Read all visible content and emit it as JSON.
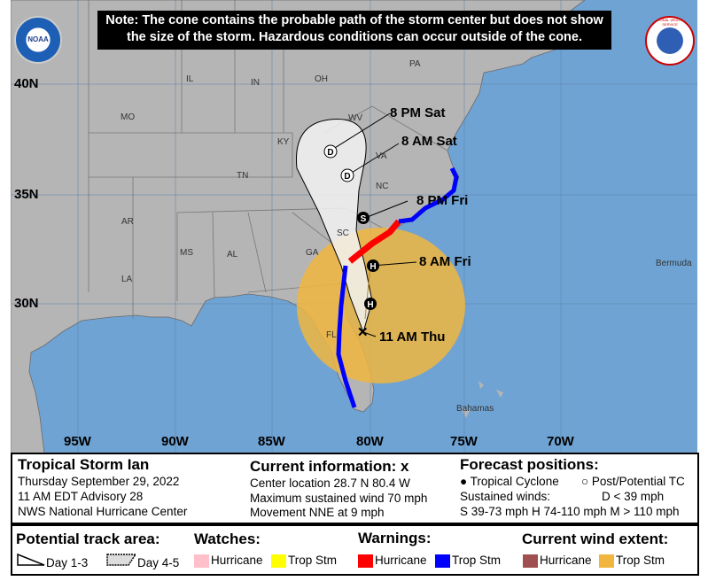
{
  "note": {
    "line1": "Note: The cone contains the probable path of the storm center but does not show",
    "line2": "the size of the storm. Hazardous conditions can occur outside of the cone."
  },
  "logos": {
    "left": "NOAA",
    "right": "NATIONAL WEATHER SERVICE"
  },
  "lat_labels": [
    "40N",
    "35N",
    "30N"
  ],
  "lon_labels": [
    "95W",
    "90W",
    "85W",
    "80W",
    "75W",
    "70W"
  ],
  "state_labels": [
    "MO",
    "IL",
    "IN",
    "OH",
    "PA",
    "KY",
    "WV",
    "VA",
    "TN",
    "NC",
    "AR",
    "SC",
    "MS",
    "AL",
    "GA",
    "LA",
    "FL"
  ],
  "place_labels": {
    "bermuda": "Bermuda",
    "bahamas": "Bahamas"
  },
  "forecast_points": [
    {
      "time": "11 AM Thu",
      "symbol": "x"
    },
    {
      "time": "",
      "symbol": "H"
    },
    {
      "time": "8 AM Fri",
      "symbol": "H"
    },
    {
      "time": "8 PM Fri",
      "symbol": "S"
    },
    {
      "time": "8 AM Sat",
      "symbol": "D"
    },
    {
      "time": "8 PM Sat",
      "symbol": "D"
    }
  ],
  "colors": {
    "ocean": "#6fa3d3",
    "land": "#b5b5b5",
    "cone": "#f0f0f0",
    "trop_storm_wind": "#f0b63e",
    "hurricane_warning": "#ff0000",
    "trop_storm_warning": "#0000ff",
    "hurricane_watch": "#ffc0cb",
    "trop_storm_watch": "#ffff00",
    "hurricane_wind": "#a05050"
  },
  "info": {
    "storm_name": "Tropical Storm Ian",
    "date": "Thursday September 29, 2022",
    "advisory": "11 AM EDT Advisory 28",
    "center": "NWS National Hurricane Center",
    "current_title": "Current information: x",
    "location": "Center location 28.7 N 80.4 W",
    "max_wind": "Maximum sustained wind 70 mph",
    "movement": "Movement NNE at 9 mph",
    "forecast_title": "Forecast positions:",
    "tc": "Tropical Cyclone",
    "post_tc": "Post/Potential TC",
    "sustained": "Sustained winds:",
    "d": "D < 39 mph",
    "shm": "S 39-73 mph  H 74-110 mph  M > 110 mph"
  },
  "legend": {
    "track_title": "Potential track area:",
    "day13": "Day 1-3",
    "day45": "Day 4-5",
    "watches_title": "Watches:",
    "warnings_title": "Warnings:",
    "wind_title": "Current wind extent:",
    "hurricane": "Hurricane",
    "trop_stm": "Trop Stm"
  }
}
